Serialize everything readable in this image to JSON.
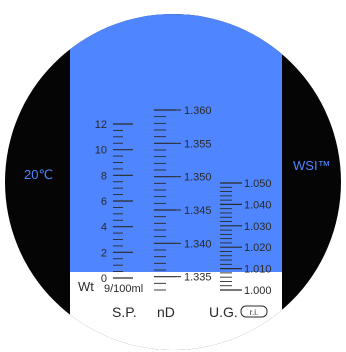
{
  "side_labels": {
    "temperature": "20℃",
    "brand": "WSI™"
  },
  "colors": {
    "sky": "#4f86ff",
    "black": "#050505",
    "field_white": "#ffffff",
    "ink": "#2a2a2a"
  },
  "scales": {
    "wt": {
      "name": "Wt",
      "unit": "9/100ml",
      "min": 0,
      "max": 12,
      "minor_step": 0.5,
      "labels": [
        "12",
        "10",
        "8",
        "6",
        "4",
        "2",
        "0"
      ],
      "label_values": [
        12,
        10,
        8,
        6,
        4,
        2,
        0
      ]
    },
    "sp": {
      "name": "S.P."
    },
    "nd": {
      "name": "nD",
      "min": 1.333,
      "max": 1.36,
      "minor_step": 0.001,
      "labels": [
        "1.360",
        "1.355",
        "1.350",
        "1.345",
        "1.340",
        "1.335"
      ],
      "label_values": [
        1.36,
        1.355,
        1.35,
        1.345,
        1.34,
        1.335
      ]
    },
    "ug": {
      "name": "U.G.",
      "badge": "r.i.",
      "min": 1.0,
      "max": 1.05,
      "minor_step": 0.002,
      "labels": [
        "1.050",
        "1.040",
        "1.030",
        "1.020",
        "1.010",
        "1.000"
      ],
      "label_values": [
        1.05,
        1.04,
        1.03,
        1.02,
        1.01,
        1.0
      ]
    }
  }
}
